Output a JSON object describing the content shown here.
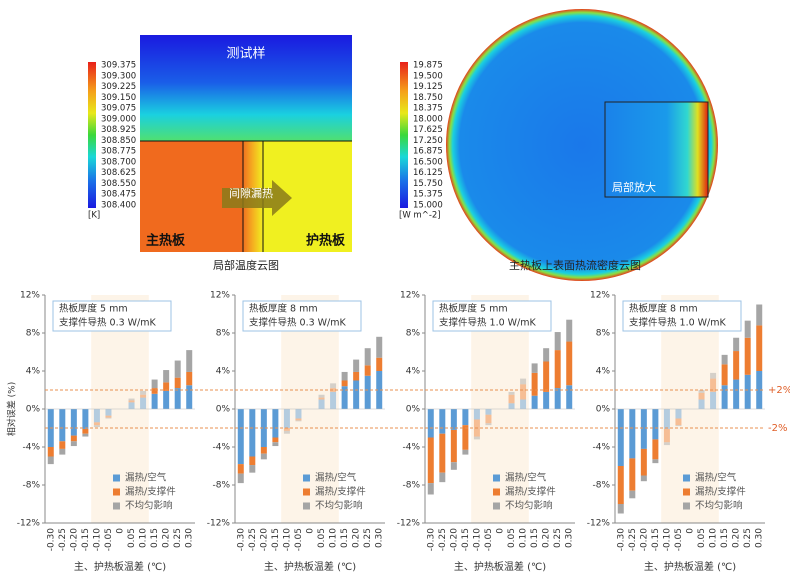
{
  "top_panels": {
    "left": {
      "colorbar": {
        "labels": [
          "309.375",
          "309.300",
          "309.225",
          "309.150",
          "309.075",
          "309.000",
          "308.925",
          "308.850",
          "308.775",
          "308.700",
          "308.625",
          "308.550",
          "308.475",
          "308.400"
        ],
        "unit": "[K]"
      },
      "texts": {
        "sample": "测试样",
        "main_plate": "主热板",
        "guard_plate": "护热板",
        "gap": "间隙漏热"
      },
      "caption": "局部温度云图"
    },
    "right": {
      "colorbar": {
        "labels": [
          "19.875",
          "19.500",
          "19.125",
          "18.750",
          "18.375",
          "18.000",
          "17.625",
          "17.250",
          "16.875",
          "16.500",
          "16.125",
          "15.750",
          "15.375",
          "15.000"
        ],
        "unit": "[W m^-2]"
      },
      "texts": {
        "zoom": "局部放大"
      },
      "caption": "主热板上表面热流密度云图"
    }
  },
  "reference_lines": [
    {
      "value": 2,
      "label": "+2%"
    },
    {
      "value": -2,
      "label": "-2%"
    }
  ],
  "chart_data": [
    {
      "type": "stacked_bar",
      "ylabel": "相对误差 (%)",
      "xlabel": "主、护热板温差 (℃)",
      "annotation": [
        "热板厚度 5 mm",
        "支撑件导热 0.3 W/mK"
      ],
      "categories": [
        "-0.30",
        "-0.25",
        "-0.20",
        "-0.15",
        "-0.10",
        "-0.05",
        "0",
        "0.05",
        "0.10",
        "0.15",
        "0.20",
        "0.25",
        "0.30"
      ],
      "ylim": [
        -12,
        12
      ],
      "yticks": [
        {
          "value": 12,
          "label": "12%"
        },
        {
          "value": 8,
          "label": "8%"
        },
        {
          "value": 4,
          "label": "4%"
        },
        {
          "value": 0,
          "label": "0%"
        },
        {
          "value": -4,
          "label": "-4%"
        },
        {
          "value": -8,
          "label": "-8%"
        },
        {
          "value": -12,
          "label": "-12%"
        }
      ],
      "series": [
        {
          "name": "漏热/空气",
          "color": "#5b9bd5",
          "values": [
            -4.0,
            -3.4,
            -2.8,
            -2.1,
            -1.4,
            -0.7,
            0,
            0.7,
            1.2,
            1.6,
            1.9,
            2.2,
            2.5
          ]
        },
        {
          "name": "漏热/支撑件",
          "color": "#ed7d31",
          "values": [
            -1.0,
            -0.8,
            -0.6,
            -0.5,
            -0.3,
            -0.2,
            0,
            0.2,
            0.3,
            0.6,
            0.9,
            1.1,
            1.4
          ]
        },
        {
          "name": "不均匀影响",
          "color": "#a5a5a5",
          "values": [
            -0.8,
            -0.6,
            -0.5,
            -0.3,
            -0.2,
            -0.1,
            0,
            0.2,
            0.4,
            0.9,
            1.3,
            1.8,
            2.3
          ]
        }
      ]
    },
    {
      "type": "stacked_bar",
      "xlabel": "主、护热板温差 (℃)",
      "annotation": [
        "热板厚度 8 mm",
        "支撑件导热 0.3 W/mK"
      ],
      "categories": [
        "-0.30",
        "-0.25",
        "-0.20",
        "-0.15",
        "-0.10",
        "-0.05",
        "0",
        "0.05",
        "0.10",
        "0.15",
        "0.20",
        "0.25",
        "0.30"
      ],
      "ylim": [
        -12,
        12
      ],
      "yticks": [
        {
          "value": 12,
          "label": "12%"
        },
        {
          "value": 8,
          "label": "8%"
        },
        {
          "value": 4,
          "label": "4%"
        },
        {
          "value": 0,
          "label": "0%"
        },
        {
          "value": -4,
          "label": "-4%"
        },
        {
          "value": -8,
          "label": "-8%"
        },
        {
          "value": -12,
          "label": "-12%"
        }
      ],
      "series": [
        {
          "name": "漏热/空气",
          "color": "#5b9bd5",
          "values": [
            -5.8,
            -5.0,
            -4.0,
            -3.0,
            -2.0,
            -1.0,
            0,
            1.0,
            1.8,
            2.4,
            3.0,
            3.5,
            4.0
          ]
        },
        {
          "name": "漏热/支撑件",
          "color": "#ed7d31",
          "values": [
            -1.0,
            -0.9,
            -0.7,
            -0.5,
            -0.3,
            -0.2,
            0,
            0.2,
            0.4,
            0.6,
            0.9,
            1.1,
            1.4
          ]
        },
        {
          "name": "不均匀影响",
          "color": "#a5a5a5",
          "values": [
            -1.0,
            -0.8,
            -0.6,
            -0.4,
            -0.3,
            -0.1,
            0,
            0.3,
            0.5,
            0.9,
            1.3,
            1.8,
            2.2
          ]
        }
      ]
    },
    {
      "type": "stacked_bar",
      "xlabel": "主、护热板温差 (℃)",
      "annotation": [
        "热板厚度 5 mm",
        "支撑件导热 1.0 W/mK"
      ],
      "categories": [
        "-0.30",
        "-0.25",
        "-0.20",
        "-0.15",
        "-0.10",
        "-0.05",
        "0",
        "0.05",
        "0.10",
        "0.15",
        "0.20",
        "0.25",
        "0.30"
      ],
      "ylim": [
        -12,
        12
      ],
      "yticks": [
        {
          "value": 12,
          "label": "12%"
        },
        {
          "value": 8,
          "label": "8%"
        },
        {
          "value": 4,
          "label": "4%"
        },
        {
          "value": 0,
          "label": "0%"
        },
        {
          "value": -4,
          "label": "-4%"
        },
        {
          "value": -8,
          "label": "-8%"
        },
        {
          "value": -12,
          "label": "-12%"
        }
      ],
      "series": [
        {
          "name": "漏热/空气",
          "color": "#5b9bd5",
          "values": [
            -3.0,
            -2.6,
            -2.2,
            -1.7,
            -1.1,
            -0.6,
            0,
            0.6,
            1.0,
            1.4,
            1.8,
            2.2,
            2.5
          ]
        },
        {
          "name": "漏热/支撑件",
          "color": "#ed7d31",
          "values": [
            -4.8,
            -4.1,
            -3.4,
            -2.6,
            -1.8,
            -0.9,
            0,
            0.9,
            1.6,
            2.4,
            3.2,
            4.0,
            4.6
          ]
        },
        {
          "name": "不均匀影响",
          "color": "#a5a5a5",
          "values": [
            -1.2,
            -1.0,
            -0.8,
            -0.5,
            -0.3,
            -0.2,
            0,
            0.3,
            0.6,
            1.0,
            1.4,
            1.9,
            2.3
          ]
        }
      ]
    },
    {
      "type": "stacked_bar",
      "xlabel": "主、护热板温差 (℃)",
      "annotation": [
        "热板厚度 8 mm",
        "支撑件导热 1.0 W/mK"
      ],
      "categories": [
        "-0.30",
        "-0.25",
        "-0.20",
        "-0.15",
        "-0.10",
        "-0.05",
        "0",
        "0.05",
        "0.10",
        "0.15",
        "0.20",
        "0.25",
        "0.30"
      ],
      "ylim": [
        -12,
        12
      ],
      "yticks": [
        {
          "value": 12,
          "label": "12%"
        },
        {
          "value": 8,
          "label": "8%"
        },
        {
          "value": 4,
          "label": "4%"
        },
        {
          "value": 0,
          "label": "0%"
        },
        {
          "value": -4,
          "label": "-4%"
        },
        {
          "value": -8,
          "label": "-8%"
        },
        {
          "value": -12,
          "label": "-12%"
        }
      ],
      "series": [
        {
          "name": "漏热/空气",
          "color": "#5b9bd5",
          "values": [
            -6.0,
            -5.2,
            -4.2,
            -3.2,
            -2.1,
            -1.0,
            0,
            1.0,
            1.8,
            2.5,
            3.1,
            3.6,
            4.0
          ]
        },
        {
          "name": "漏热/支撑件",
          "color": "#ed7d31",
          "values": [
            -4.0,
            -3.4,
            -2.8,
            -2.1,
            -1.4,
            -0.7,
            0,
            0.7,
            1.4,
            2.2,
            3.0,
            3.9,
            4.8
          ]
        },
        {
          "name": "不均匀影响",
          "color": "#a5a5a5",
          "values": [
            -1.0,
            -0.8,
            -0.6,
            -0.4,
            -0.3,
            -0.1,
            0,
            0.3,
            0.6,
            1.0,
            1.4,
            1.8,
            2.2
          ]
        }
      ]
    }
  ]
}
